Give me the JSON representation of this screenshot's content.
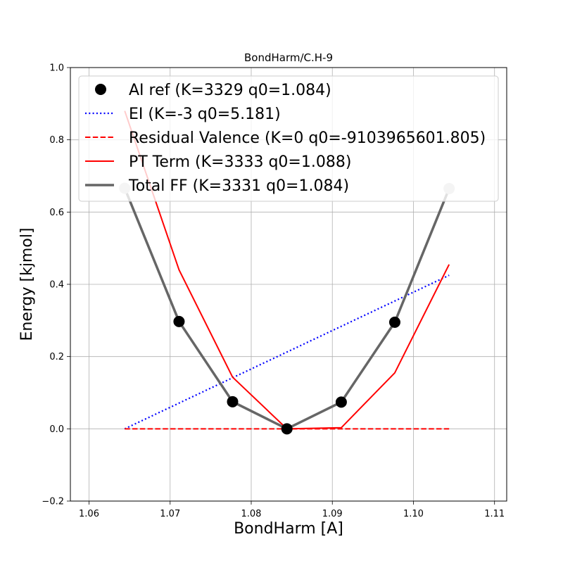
{
  "chart_data": {
    "type": "line",
    "title": "BondHarm/C.H-9",
    "xlabel": "BondHarm [A]",
    "ylabel": "Energy [kjmol]",
    "xlim": [
      1.0577,
      1.1115
    ],
    "ylim": [
      -0.2,
      1.0
    ],
    "xticks": [
      1.06,
      1.07,
      1.08,
      1.09,
      1.1,
      1.11
    ],
    "xtick_labels": [
      "1.06",
      "1.07",
      "1.08",
      "1.09",
      "1.10",
      "1.11"
    ],
    "yticks": [
      -0.2,
      0.0,
      0.2,
      0.4,
      0.6,
      0.8,
      1.0
    ],
    "ytick_labels": [
      "−0.2",
      "0.0",
      "0.2",
      "0.4",
      "0.6",
      "0.8",
      "1.0"
    ],
    "grid": true,
    "legend_position": "top",
    "series": [
      {
        "name": "AI ref (K=3329 q0=1.084)",
        "style": "markers",
        "color": "#000000",
        "x": [
          1.0644,
          1.0711,
          1.0777,
          1.0844,
          1.0911,
          1.0977,
          1.1044
        ],
        "y": [
          0.666,
          0.297,
          0.075,
          0.0,
          0.074,
          0.295,
          0.665
        ]
      },
      {
        "name": "EI (K=-3 q0=5.181)",
        "style": "dotted",
        "color": "#0000ff",
        "x": [
          1.0644,
          1.1044
        ],
        "y": [
          0.0,
          0.425
        ]
      },
      {
        "name": "Residual Valence (K=0 q0=-9103965601.805)",
        "style": "dashed",
        "color": "#ff0000",
        "x": [
          1.0644,
          1.0711,
          1.0777,
          1.0844,
          1.0911,
          1.0977,
          1.1044
        ],
        "y": [
          0.0,
          0.0,
          0.0,
          0.0,
          0.0,
          0.0,
          0.0
        ]
      },
      {
        "name": "PT Term (K=3333 q0=1.088)",
        "style": "solid",
        "color": "#ff0000",
        "x": [
          1.0644,
          1.0711,
          1.0777,
          1.0844,
          1.0911,
          1.0977,
          1.1044
        ],
        "y": [
          0.88,
          0.44,
          0.143,
          0.0,
          0.003,
          0.155,
          0.455
        ]
      },
      {
        "name": "Total FF (K=3331 q0=1.084)",
        "style": "solid-markers",
        "color": "#666666",
        "x": [
          1.0644,
          1.0711,
          1.0777,
          1.0844,
          1.0911,
          1.0977,
          1.1044
        ],
        "y": [
          0.666,
          0.297,
          0.075,
          0.0,
          0.074,
          0.295,
          0.665
        ]
      }
    ]
  }
}
